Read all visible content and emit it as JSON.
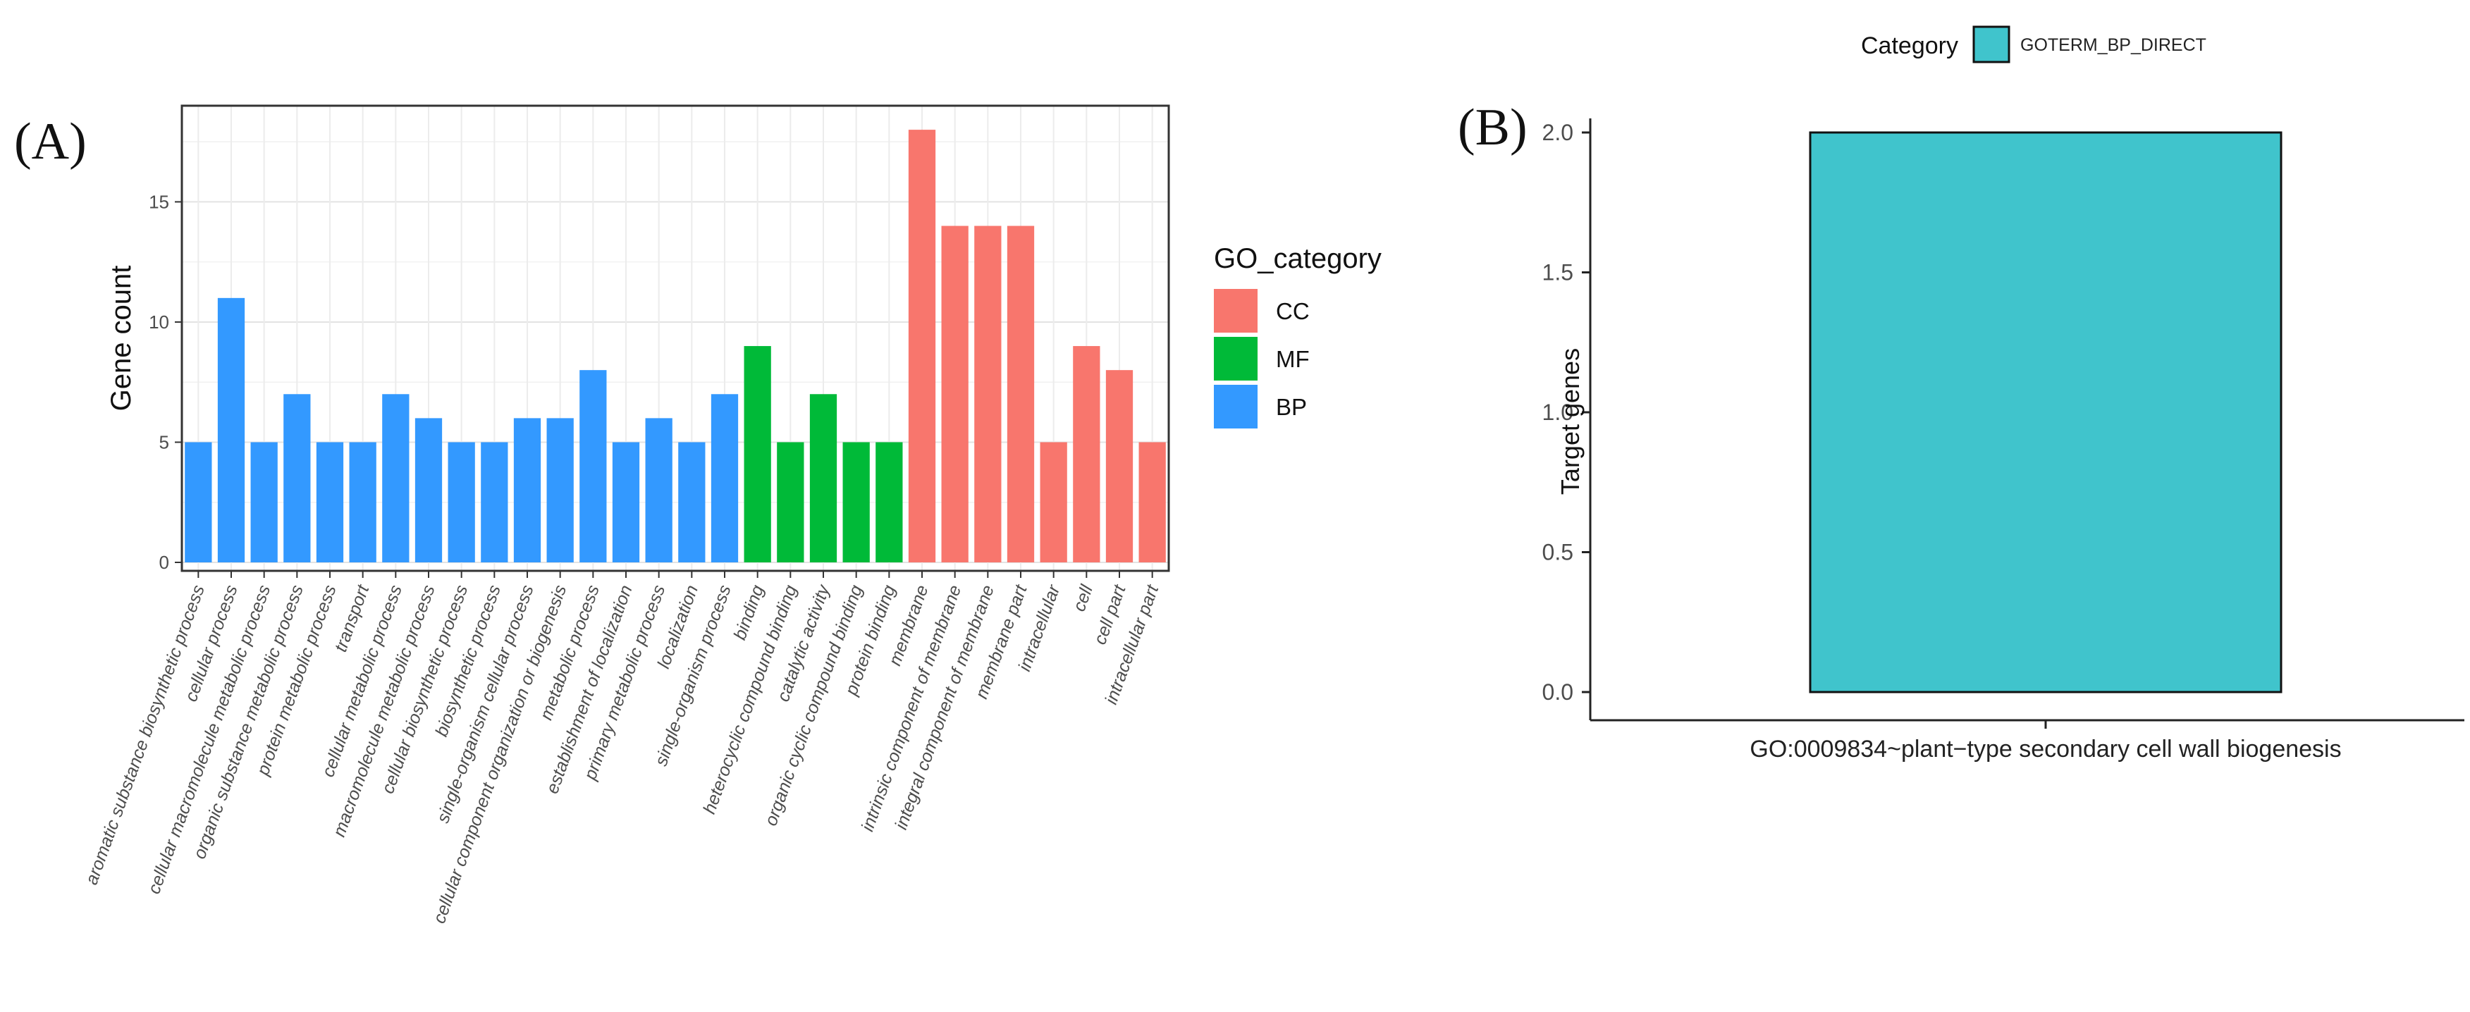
{
  "chart_data": [
    {
      "type": "bar",
      "panel_label": "(A)",
      "ylabel": "Gene count",
      "ylim": [
        0,
        19
      ],
      "yticks": [
        0,
        5,
        10,
        15
      ],
      "grid": true,
      "legend": {
        "title": "GO_category",
        "placement": "right",
        "items": [
          {
            "name": "CC",
            "color": "#F8766D"
          },
          {
            "name": "MF",
            "color": "#00BA38"
          },
          {
            "name": "BP",
            "color": "#3399FF"
          }
        ]
      },
      "categories": [
        "aromatic substance biosynthetic process",
        "cellular process",
        "cellular macromolecule metabolic process",
        "organic substance metabolic process",
        "protein metabolic process",
        "transport",
        "cellular metabolic process",
        "macromolecule metabolic process",
        "cellular biosynthetic process",
        "biosynthetic process",
        "single-organism cellular process",
        "cellular component organization or biogenesis",
        "metabolic process",
        "establishment of localization",
        "primary metabolic process",
        "localization",
        "single-organism process",
        "binding",
        "heterocyclic compound binding",
        "catalytic activity",
        "organic cyclic compound binding",
        "protein binding",
        "membrane",
        "intrinsic component of membrane",
        "integral component of membrane",
        "membrane part",
        "intracellular",
        "cell",
        "cell part",
        "intracellular part"
      ],
      "values": [
        5,
        11,
        5,
        7,
        5,
        5,
        7,
        6,
        5,
        5,
        6,
        6,
        8,
        5,
        6,
        5,
        7,
        9,
        5,
        7,
        5,
        5,
        18,
        14,
        14,
        14,
        5,
        9,
        8,
        5
      ],
      "groups": [
        "BP",
        "BP",
        "BP",
        "BP",
        "BP",
        "BP",
        "BP",
        "BP",
        "BP",
        "BP",
        "BP",
        "BP",
        "BP",
        "BP",
        "BP",
        "BP",
        "BP",
        "MF",
        "MF",
        "MF",
        "MF",
        "MF",
        "CC",
        "CC",
        "CC",
        "CC",
        "CC",
        "CC",
        "CC",
        "CC"
      ]
    },
    {
      "type": "bar",
      "panel_label": "(B)",
      "ylabel": "Target genes",
      "ylim": [
        0,
        2.0
      ],
      "yticks": [
        "0.0",
        "0.5",
        "1.0",
        "1.5",
        "2.0"
      ],
      "grid": false,
      "legend": {
        "title": "Category",
        "placement": "top",
        "items": [
          {
            "name": "GOTERM_BP_DIRECT",
            "color": "#40C4CC"
          }
        ]
      },
      "categories": [
        "GO:0009834~plant−type secondary cell wall biogenesis"
      ],
      "values": [
        2
      ]
    }
  ]
}
